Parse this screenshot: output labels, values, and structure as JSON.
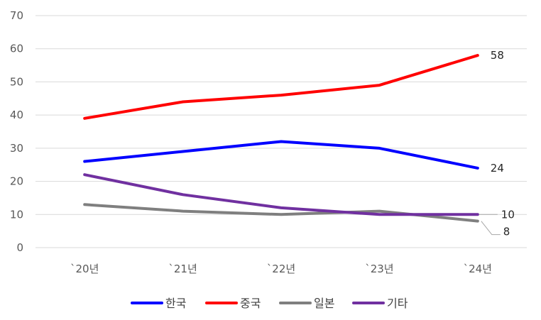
{
  "chart_data": {
    "type": "line",
    "title": "",
    "xlabel": "",
    "ylabel": "",
    "categories": [
      "`20년",
      "`21년",
      "`22년",
      "`23년",
      "`24년"
    ],
    "ylim": [
      0,
      70
    ],
    "yticks": [
      0,
      10,
      20,
      30,
      40,
      50,
      60,
      70
    ],
    "grid": true,
    "legend_position": "bottom",
    "series": [
      {
        "name": "한국",
        "color": "#0000ff",
        "values": [
          26,
          29,
          32,
          30,
          24
        ],
        "end_label": "24"
      },
      {
        "name": "중국",
        "color": "#ff0000",
        "values": [
          39,
          44,
          46,
          49,
          58
        ],
        "end_label": "58"
      },
      {
        "name": "일본",
        "color": "#7f7f7f",
        "values": [
          13,
          11,
          10,
          11,
          8
        ],
        "end_label": "8"
      },
      {
        "name": "기타",
        "color": "#7030a0",
        "values": [
          22,
          16,
          12,
          10,
          10
        ],
        "end_label": "10"
      }
    ]
  }
}
